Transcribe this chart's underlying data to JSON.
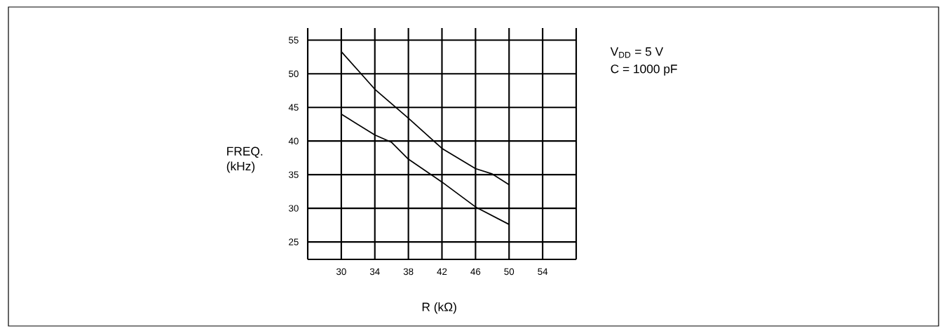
{
  "chart_data": {
    "type": "line",
    "xlabel": "R (kΩ)",
    "ylabel": "FREQ. (kHz)",
    "annotations": [
      "V$_{DD}$ = 5 V",
      "C = 1000 pF"
    ],
    "series": [
      {
        "color": "#000000",
        "x": [
          30,
          34,
          38,
          42,
          46,
          48,
          50
        ],
        "values": [
          53.3,
          47.7,
          43.4,
          38.9,
          35.9,
          35.1,
          33.5
        ]
      },
      {
        "color": "#000000",
        "x": [
          30,
          34,
          36,
          38,
          42,
          46,
          50
        ],
        "values": [
          44.0,
          40.9,
          39.8,
          37.3,
          33.9,
          30.2,
          27.6
        ]
      }
    ],
    "xlim": [
      26,
      58
    ],
    "ylim": [
      22.4,
      56.8
    ],
    "xticks": [
      30,
      34,
      38,
      42,
      46,
      50,
      54,
      {
        "value": 58,
        "label": null
      }
    ],
    "yticks": [
      25,
      30,
      35,
      40,
      45,
      50,
      55
    ],
    "grid": true,
    "marker": "none",
    "line_style": "solid"
  }
}
